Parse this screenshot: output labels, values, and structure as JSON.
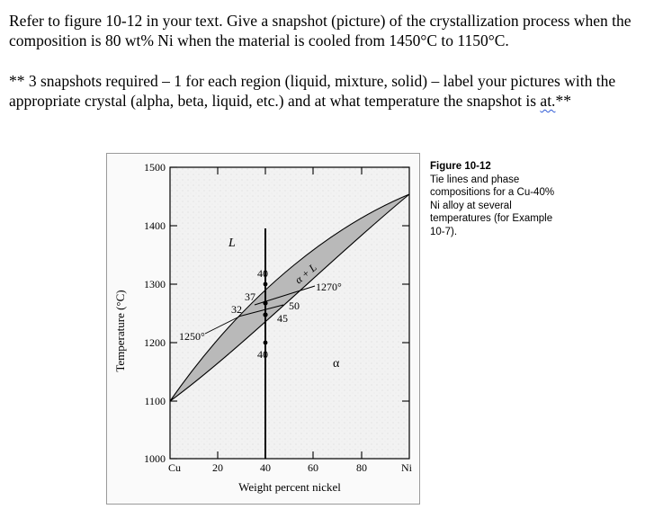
{
  "question": {
    "paragraph1": "Refer to figure 10-12 in your text.  Give a snapshot (picture) of the crystallization process when the composition is 80 wt% Ni when the material is cooled from 1450°C to 1150°C.",
    "paragraph2_main": "** 3 snapshots required – 1 for each region (liquid, mixture, solid) – label your pictures with the appropriate crystal (alpha, beta, liquid, etc.) and at what temperature the snapshot is ",
    "paragraph2_flagged": "at.",
    "paragraph2_end": "**"
  },
  "figure": {
    "caption_title": "Figure 10-12",
    "caption_text": "Tie lines and phase compositions for a Cu-40% Ni alloy at several temperatures (for Example 10-7).",
    "ylabel": "Temperature (°C)",
    "xlabel": "Weight percent nickel",
    "y_ticks": [
      "1000",
      "1100",
      "1200",
      "1300",
      "1400",
      "1500"
    ],
    "x_ticks": [
      "Cu",
      "20",
      "40",
      "60",
      "80",
      "Ni"
    ],
    "region_labels": {
      "liquid": "L",
      "mixture": "α + L",
      "solid": "α"
    },
    "annotations": {
      "t1270": "1270°",
      "t1250": "1250°",
      "c40_top": "40",
      "c37": "37",
      "c32": "32",
      "c50": "50",
      "c45": "45",
      "c40_bottom": "40"
    }
  }
}
